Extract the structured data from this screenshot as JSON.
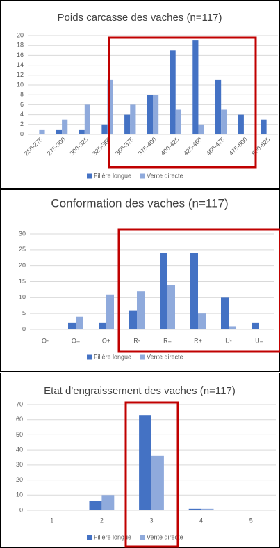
{
  "chart_data": [
    {
      "type": "bar",
      "title": "Poids carcasse des vaches (n=117)",
      "categories": [
        "250-275",
        "275-300",
        "300-325",
        "325-350",
        "350-375",
        "375-400",
        "400-425",
        "425-450",
        "450-475",
        "475-500",
        "500-525"
      ],
      "series": [
        {
          "name": "Filière longue",
          "color": "#4472c4",
          "values": [
            0,
            1,
            1,
            2,
            4,
            8,
            17,
            19,
            11,
            4,
            3
          ]
        },
        {
          "name": "Vente directe",
          "color": "#8faadc",
          "values": [
            1,
            3,
            6,
            11,
            6,
            8,
            5,
            2,
            5,
            0,
            0
          ]
        }
      ],
      "ylim": [
        0,
        20
      ],
      "yticks": [
        0,
        2,
        4,
        6,
        8,
        10,
        12,
        14,
        16,
        18,
        20
      ],
      "grid": true
    },
    {
      "type": "bar",
      "title": "Conformation des vaches (n=117)",
      "categories": [
        "O-",
        "O=",
        "O+",
        "R-",
        "R=",
        "R+",
        "U-",
        "U="
      ],
      "series": [
        {
          "name": "Filière longue",
          "color": "#4472c4",
          "values": [
            0,
            2,
            2,
            6,
            24,
            24,
            10,
            2
          ]
        },
        {
          "name": "Vente directe",
          "color": "#8faadc",
          "values": [
            0,
            4,
            11,
            12,
            14,
            5,
            1,
            0
          ]
        }
      ],
      "ylim": [
        0,
        30
      ],
      "yticks": [
        0,
        5,
        10,
        15,
        20,
        25,
        30
      ],
      "grid": true
    },
    {
      "type": "bar",
      "title": "Etat d'engraissement des vaches (n=117)",
      "categories": [
        "1",
        "2",
        "3",
        "4",
        "5"
      ],
      "series": [
        {
          "name": "Filière longue",
          "color": "#4472c4",
          "values": [
            0,
            6,
            63,
            1,
            0
          ]
        },
        {
          "name": "Vente directe",
          "color": "#8faadc",
          "values": [
            0,
            10,
            36,
            1,
            0
          ]
        }
      ],
      "ylim": [
        0,
        70
      ],
      "yticks": [
        0,
        10,
        20,
        30,
        40,
        50,
        60,
        70
      ],
      "grid": true
    }
  ]
}
